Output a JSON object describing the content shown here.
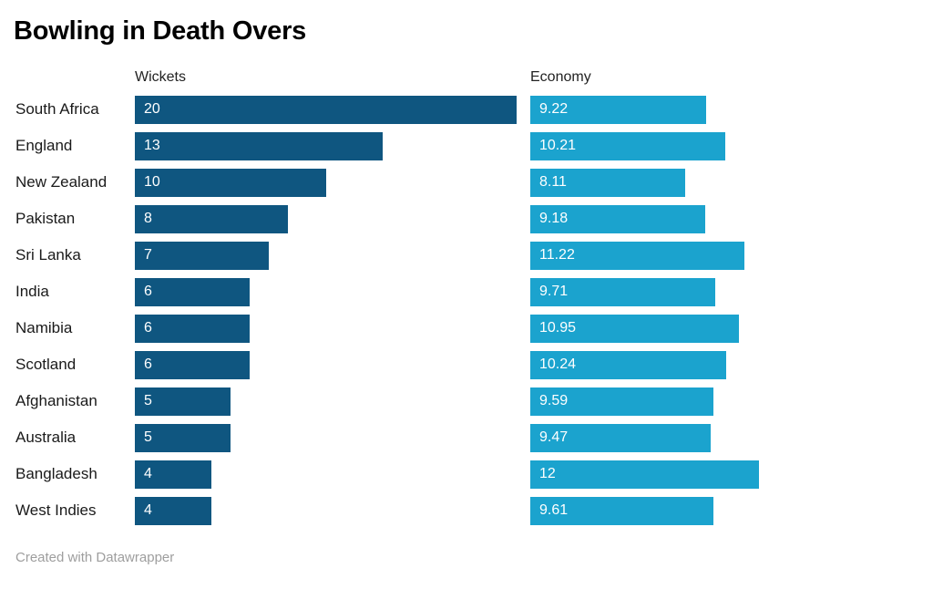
{
  "title": "Bowling in Death Overs",
  "footer": "Created with Datawrapper",
  "columns": {
    "wickets_label": "Wickets",
    "economy_label": "Economy"
  },
  "colors": {
    "wickets_bar": "#0f5680",
    "economy_bar": "#1ba3ce",
    "bar_text": "#ffffff",
    "title_text": "#000000",
    "footer_text": "#9e9e9e"
  },
  "chart_data": {
    "type": "bar",
    "orientation": "horizontal",
    "grid": false,
    "legend_position": "column-headers",
    "bar_labels": true,
    "title": "Bowling in Death Overs",
    "xlabel": "",
    "ylabel": "",
    "categories": [
      "South Africa",
      "England",
      "New Zealand",
      "Pakistan",
      "Sri Lanka",
      "India",
      "Namibia",
      "Scotland",
      "Afghanistan",
      "Australia",
      "Bangladesh",
      "West Indies"
    ],
    "series": [
      {
        "name": "Wickets",
        "values": [
          20,
          13,
          10,
          8,
          7,
          6,
          6,
          6,
          5,
          5,
          4,
          4
        ],
        "xlim": [
          0,
          20
        ]
      },
      {
        "name": "Economy",
        "values": [
          9.22,
          10.21,
          8.11,
          9.18,
          11.22,
          9.71,
          10.95,
          10.24,
          9.59,
          9.47,
          12,
          9.61
        ],
        "xlim": [
          0,
          12
        ]
      }
    ]
  }
}
